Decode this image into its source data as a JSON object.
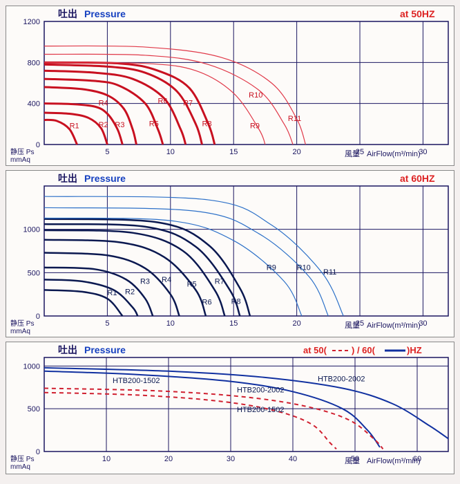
{
  "common": {
    "title_cn": "吐出",
    "title_en": "Pressure",
    "y_axis_cn": "静压 Ps",
    "y_axis_unit": "mmAq",
    "x_axis_cn": "風量",
    "x_axis_en": "AirFlow(m³/min)",
    "background": "#fdfbf9",
    "grid_color": "#1a1560",
    "grid_width": 1
  },
  "chart1": {
    "freq_label": "at 50HZ",
    "freq_color": "#d22",
    "title_color": "#1540c0",
    "xlim": [
      0,
      32
    ],
    "ylim": [
      0,
      1200
    ],
    "xticks": [
      0,
      5,
      10,
      15,
      20,
      25,
      30
    ],
    "yticks": [
      0,
      400,
      800,
      1200
    ],
    "curve_color_thick": "#c81020",
    "curve_color_thin": "#e03848",
    "label_color": "#c81020",
    "curves": [
      {
        "label": "R1",
        "lx": 2.0,
        "ly": 160,
        "w": 3,
        "pts": [
          [
            0,
            240
          ],
          [
            1,
            230
          ],
          [
            2,
            150
          ],
          [
            2.6,
            0
          ]
        ]
      },
      {
        "label": "R2",
        "lx": 4.3,
        "ly": 170,
        "w": 3,
        "pts": [
          [
            0,
            310
          ],
          [
            2,
            300
          ],
          [
            3.5,
            260
          ],
          [
            4.5,
            160
          ],
          [
            5,
            0
          ]
        ]
      },
      {
        "label": "R3",
        "lx": 5.6,
        "ly": 170,
        "w": 3,
        "pts": [
          [
            0,
            400
          ],
          [
            2,
            395
          ],
          [
            4,
            370
          ],
          [
            5,
            300
          ],
          [
            5.8,
            150
          ],
          [
            6.2,
            0
          ]
        ]
      },
      {
        "label": "R4",
        "lx": 4.3,
        "ly": 380,
        "w": 3,
        "pts": [
          [
            0,
            560
          ],
          [
            3,
            540
          ],
          [
            5,
            480
          ],
          [
            6.3,
            350
          ],
          [
            7,
            150
          ],
          [
            7.3,
            0
          ]
        ]
      },
      {
        "label": "R5",
        "lx": 8.3,
        "ly": 180,
        "w": 3,
        "pts": [
          [
            0,
            640
          ],
          [
            4,
            620
          ],
          [
            6,
            570
          ],
          [
            8,
            400
          ],
          [
            9,
            150
          ],
          [
            9.4,
            0
          ]
        ]
      },
      {
        "label": "R6",
        "lx": 9.0,
        "ly": 400,
        "w": 3,
        "pts": [
          [
            0,
            720
          ],
          [
            4,
            700
          ],
          [
            7,
            640
          ],
          [
            9.5,
            450
          ],
          [
            10.8,
            150
          ],
          [
            11.2,
            0
          ]
        ]
      },
      {
        "label": "R7",
        "lx": 11.0,
        "ly": 380,
        "w": 3,
        "pts": [
          [
            0,
            780
          ],
          [
            5,
            760
          ],
          [
            8,
            700
          ],
          [
            10.5,
            520
          ],
          [
            12,
            200
          ],
          [
            12.5,
            0
          ]
        ]
      },
      {
        "label": "R8",
        "lx": 12.5,
        "ly": 180,
        "w": 3,
        "pts": [
          [
            0,
            800
          ],
          [
            6,
            790
          ],
          [
            9,
            720
          ],
          [
            11.5,
            550
          ],
          [
            13,
            200
          ],
          [
            13.5,
            0
          ]
        ]
      },
      {
        "label": "R9",
        "lx": 16.3,
        "ly": 160,
        "w": 1.2,
        "pts": [
          [
            0,
            800
          ],
          [
            8,
            790
          ],
          [
            12,
            720
          ],
          [
            15,
            500
          ],
          [
            17,
            150
          ],
          [
            17.5,
            0
          ]
        ]
      },
      {
        "label": "R10",
        "lx": 16.2,
        "ly": 460,
        "w": 1.2,
        "pts": [
          [
            0,
            880
          ],
          [
            8,
            870
          ],
          [
            13,
            780
          ],
          [
            17,
            530
          ],
          [
            19,
            200
          ],
          [
            19.7,
            0
          ]
        ]
      },
      {
        "label": "R11",
        "lx": 19.3,
        "ly": 230,
        "w": 1.2,
        "pts": [
          [
            0,
            960
          ],
          [
            8,
            950
          ],
          [
            14,
            850
          ],
          [
            18,
            600
          ],
          [
            20,
            250
          ],
          [
            20.7,
            0
          ]
        ]
      }
    ]
  },
  "chart2": {
    "freq_label": "at 60HZ",
    "freq_color": "#d22",
    "title_color": "#1540c0",
    "xlim": [
      0,
      32
    ],
    "ylim": [
      0,
      1500
    ],
    "xticks": [
      0,
      5,
      10,
      15,
      20,
      25,
      30
    ],
    "yticks": [
      0,
      500,
      1000
    ],
    "curve_color_thick": "#0a1850",
    "curve_color_thin": "#2c70c8",
    "label_color": "#0a1850",
    "curves": [
      {
        "label": "R1",
        "lx": 5.0,
        "ly": 240,
        "w": 2.5,
        "pts": [
          [
            0,
            300
          ],
          [
            3,
            280
          ],
          [
            5,
            200
          ],
          [
            6.2,
            0
          ]
        ]
      },
      {
        "label": "R2",
        "lx": 6.4,
        "ly": 250,
        "w": 2.5,
        "pts": [
          [
            0,
            420
          ],
          [
            3,
            400
          ],
          [
            5.5,
            300
          ],
          [
            7,
            100
          ],
          [
            7.4,
            0
          ]
        ]
      },
      {
        "label": "R3",
        "lx": 7.6,
        "ly": 370,
        "w": 2.5,
        "pts": [
          [
            0,
            560
          ],
          [
            4,
            540
          ],
          [
            6.5,
            420
          ],
          [
            8,
            200
          ],
          [
            8.6,
            0
          ]
        ]
      },
      {
        "label": "R4",
        "lx": 9.3,
        "ly": 390,
        "w": 2.5,
        "pts": [
          [
            0,
            730
          ],
          [
            5,
            700
          ],
          [
            8,
            550
          ],
          [
            10,
            250
          ],
          [
            10.7,
            0
          ]
        ]
      },
      {
        "label": "R5",
        "lx": 11.3,
        "ly": 340,
        "w": 2.5,
        "pts": [
          [
            0,
            880
          ],
          [
            6,
            850
          ],
          [
            9.5,
            680
          ],
          [
            12,
            300
          ],
          [
            12.8,
            0
          ]
        ]
      },
      {
        "label": "R6",
        "lx": 12.5,
        "ly": 130,
        "w": 2.5,
        "pts": [
          [
            0,
            990
          ],
          [
            7,
            960
          ],
          [
            11,
            750
          ],
          [
            13.5,
            300
          ],
          [
            14.3,
            0
          ]
        ]
      },
      {
        "label": "R7",
        "lx": 13.5,
        "ly": 370,
        "w": 2.5,
        "pts": [
          [
            0,
            1060
          ],
          [
            8,
            1030
          ],
          [
            12,
            800
          ],
          [
            14.7,
            300
          ],
          [
            15.5,
            0
          ]
        ]
      },
      {
        "label": "R8",
        "lx": 14.8,
        "ly": 140,
        "w": 2.5,
        "pts": [
          [
            0,
            1120
          ],
          [
            9,
            1080
          ],
          [
            13,
            820
          ],
          [
            15.5,
            320
          ],
          [
            16.3,
            0
          ]
        ]
      },
      {
        "label": "R9",
        "lx": 17.6,
        "ly": 530,
        "w": 1.2,
        "pts": [
          [
            0,
            1130
          ],
          [
            10,
            1100
          ],
          [
            15,
            870
          ],
          [
            19,
            400
          ],
          [
            20.4,
            0
          ]
        ]
      },
      {
        "label": "R10",
        "lx": 20,
        "ly": 530,
        "w": 1.2,
        "pts": [
          [
            0,
            1250
          ],
          [
            12,
            1210
          ],
          [
            17,
            950
          ],
          [
            21,
            450
          ],
          [
            22.5,
            0
          ]
        ]
      },
      {
        "label": "R11",
        "lx": 22.1,
        "ly": 480,
        "w": 1.2,
        "pts": [
          [
            0,
            1380
          ],
          [
            13,
            1340
          ],
          [
            18,
            1050
          ],
          [
            22,
            500
          ],
          [
            23.7,
            0
          ]
        ]
      }
    ]
  },
  "chart3": {
    "freq_label_prefix": "at 50(",
    "freq_label_mid": ") / 60(",
    "freq_label_suffix": ")HZ",
    "freq_color": "#d22",
    "title_color": "#1540c0",
    "xlim": [
      0,
      65
    ],
    "ylim": [
      0,
      1100
    ],
    "xticks": [
      0,
      10,
      20,
      30,
      40,
      50,
      60
    ],
    "yticks": [
      0,
      500,
      1000
    ],
    "color_50": "#d02030",
    "color_60": "#1030a0",
    "label_color": "#0a1850",
    "curves": [
      {
        "label": "HTB200-1502",
        "lx": 11,
        "ly": 800,
        "dash": false,
        "col": "60",
        "w": 2,
        "pts": [
          [
            0,
            940
          ],
          [
            15,
            900
          ],
          [
            30,
            820
          ],
          [
            40,
            700
          ],
          [
            48,
            500
          ],
          [
            52,
            250
          ],
          [
            54,
            50
          ]
        ]
      },
      {
        "label": "HTB200-2002",
        "lx": 44,
        "ly": 820,
        "dash": false,
        "col": "60",
        "w": 2,
        "pts": [
          [
            0,
            980
          ],
          [
            20,
            940
          ],
          [
            35,
            870
          ],
          [
            48,
            740
          ],
          [
            56,
            560
          ],
          [
            62,
            300
          ],
          [
            65,
            150
          ]
        ]
      },
      {
        "label": "HTB200-1502",
        "lx": 31,
        "ly": 460,
        "dash": true,
        "col": "50",
        "w": 2,
        "pts": [
          [
            0,
            690
          ],
          [
            15,
            660
          ],
          [
            28,
            590
          ],
          [
            37,
            480
          ],
          [
            43,
            320
          ],
          [
            46,
            100
          ],
          [
            47,
            30
          ]
        ]
      },
      {
        "label": "HTB200-2002",
        "lx": 31,
        "ly": 690,
        "dash": true,
        "col": "50",
        "w": 2,
        "pts": [
          [
            0,
            740
          ],
          [
            18,
            710
          ],
          [
            32,
            640
          ],
          [
            42,
            530
          ],
          [
            49,
            370
          ],
          [
            53,
            150
          ],
          [
            54.5,
            30
          ]
        ]
      }
    ]
  }
}
